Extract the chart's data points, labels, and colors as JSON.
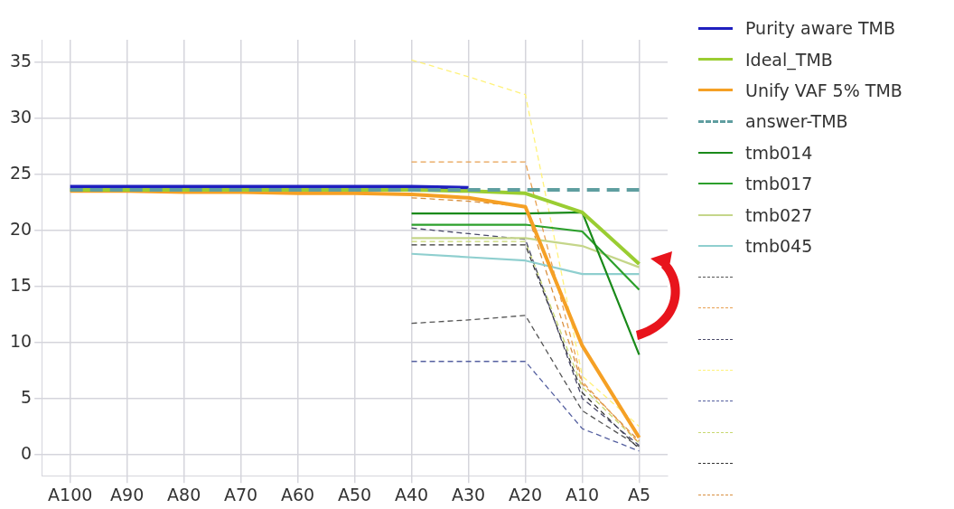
{
  "chart_data": {
    "type": "line",
    "categories": [
      "A100",
      "A90",
      "A80",
      "A70",
      "A60",
      "A50",
      "A40",
      "A30",
      "A20",
      "A10",
      "A5"
    ],
    "series": [
      {
        "name": "Purity aware TMB",
        "color": "#1f1fbf",
        "values": [
          23.9,
          23.9,
          23.9,
          23.9,
          23.9,
          23.9,
          23.9,
          23.8,
          null,
          null,
          null
        ]
      },
      {
        "name": "Ideal_TMB",
        "color": "#9acd32",
        "values": [
          23.6,
          23.6,
          23.6,
          23.6,
          23.6,
          23.6,
          23.6,
          23.5,
          23.3,
          21.6,
          17.0
        ]
      },
      {
        "name": "Unify VAF 5% TMB",
        "color": "#f5a025",
        "values": [
          23.5,
          23.5,
          23.4,
          23.4,
          23.3,
          23.3,
          23.2,
          22.9,
          22.1,
          9.7,
          1.5
        ]
      },
      {
        "name": "answer-TMB",
        "color": "#5f9ea0",
        "line_style": "dashed",
        "values": [
          23.6,
          23.6,
          23.6,
          23.6,
          23.6,
          23.6,
          23.6,
          23.6,
          23.6,
          23.6,
          23.6
        ]
      },
      {
        "name": "tmb014",
        "color": "#1a8a1a",
        "values": [
          null,
          null,
          null,
          null,
          null,
          null,
          21.5,
          21.5,
          21.5,
          21.6,
          8.9
        ]
      },
      {
        "name": "tmb017",
        "color": "#2ca02c",
        "values": [
          null,
          null,
          null,
          null,
          null,
          null,
          20.5,
          20.5,
          20.5,
          19.9,
          14.7
        ]
      },
      {
        "name": "tmb027",
        "color": "#c5d68a",
        "values": [
          null,
          null,
          null,
          null,
          null,
          null,
          19.3,
          19.3,
          19.3,
          18.6,
          16.7
        ]
      },
      {
        "name": "tmb045",
        "color": "#8fcfcf",
        "values": [
          null,
          null,
          null,
          null,
          null,
          null,
          17.9,
          17.6,
          17.3,
          16.1,
          16.1
        ]
      },
      {
        "color": "#555555",
        "line_style": "dashed",
        "values": [
          null,
          null,
          null,
          null,
          null,
          null,
          11.7,
          12.0,
          12.4,
          3.9,
          0.7
        ]
      },
      {
        "color": "#e8a050",
        "line_style": "dashed",
        "values": [
          null,
          null,
          null,
          null,
          null,
          null,
          26.1,
          26.1,
          26.1,
          6.5,
          1.0
        ]
      },
      {
        "color": "#4a4a6a",
        "line_style": "dashed",
        "values": [
          null,
          null,
          null,
          null,
          null,
          null,
          20.2,
          19.7,
          19.2,
          5.0,
          0.8
        ]
      },
      {
        "color": "#fff27a",
        "line_style": "dashed",
        "values": [
          null,
          null,
          null,
          null,
          null,
          null,
          35.2,
          33.7,
          32.1,
          7.0,
          2.5
        ]
      },
      {
        "color": "#5560a0",
        "line_style": "dashed",
        "values": [
          null,
          null,
          null,
          null,
          null,
          null,
          8.3,
          8.3,
          8.3,
          2.3,
          0.3
        ]
      },
      {
        "color": "#c8d870",
        "line_style": "dashed",
        "values": [
          null,
          null,
          null,
          null,
          null,
          null,
          19.0,
          19.0,
          19.0,
          6.0,
          1.0
        ]
      },
      {
        "color": "#333333",
        "line_style": "dashed",
        "values": [
          null,
          null,
          null,
          null,
          null,
          null,
          18.7,
          18.7,
          18.7,
          5.5,
          0.5
        ]
      },
      {
        "color": "#d89040",
        "line_style": "dashed",
        "values": [
          null,
          null,
          null,
          null,
          null,
          null,
          22.9,
          22.6,
          22.1,
          6.3,
          1.2
        ]
      }
    ],
    "ylim": [
      -1.9,
      37
    ],
    "yticks": [
      0,
      5,
      10,
      15,
      20,
      25,
      30,
      35
    ],
    "grid": true,
    "legend": "right",
    "marker": "none",
    "line_style": "solid"
  }
}
